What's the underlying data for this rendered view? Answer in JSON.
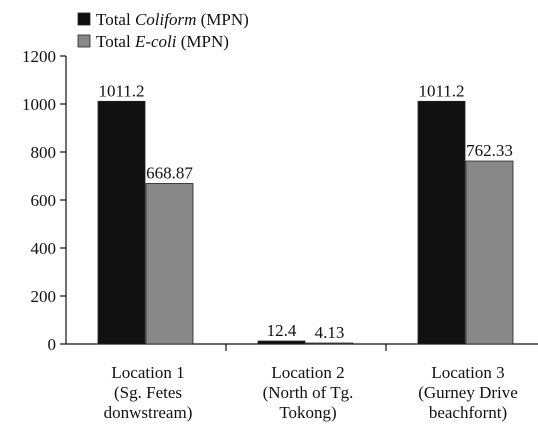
{
  "chart_data": {
    "type": "bar",
    "categories": [
      [
        "Location 1",
        "(Sg. Fetes",
        "donwstream)"
      ],
      [
        "Location 2",
        "(North of Tg.",
        "Tokong)"
      ],
      [
        "Location 3",
        "(Gurney Drive",
        "beachfornt)"
      ]
    ],
    "series": [
      {
        "name_plain": "Total ",
        "name_italic": "Coliform",
        "name_suffix": " (MPN)",
        "color": "#111111",
        "values": [
          1011.2,
          12.4,
          1011.2
        ],
        "labels": [
          "1011.2",
          "12.4",
          "1011.2"
        ]
      },
      {
        "name_plain": "Total ",
        "name_italic": "E-coli",
        "name_suffix": " (MPN)",
        "color": "#888888",
        "values": [
          668.87,
          4.13,
          762.33
        ],
        "labels": [
          "668.87",
          "4.13",
          "762.33"
        ]
      }
    ],
    "y_ticks": [
      0,
      200,
      400,
      600,
      800,
      1000,
      1200
    ],
    "ylim": [
      0,
      1200
    ],
    "legend_position": "top-left",
    "grid": false
  }
}
